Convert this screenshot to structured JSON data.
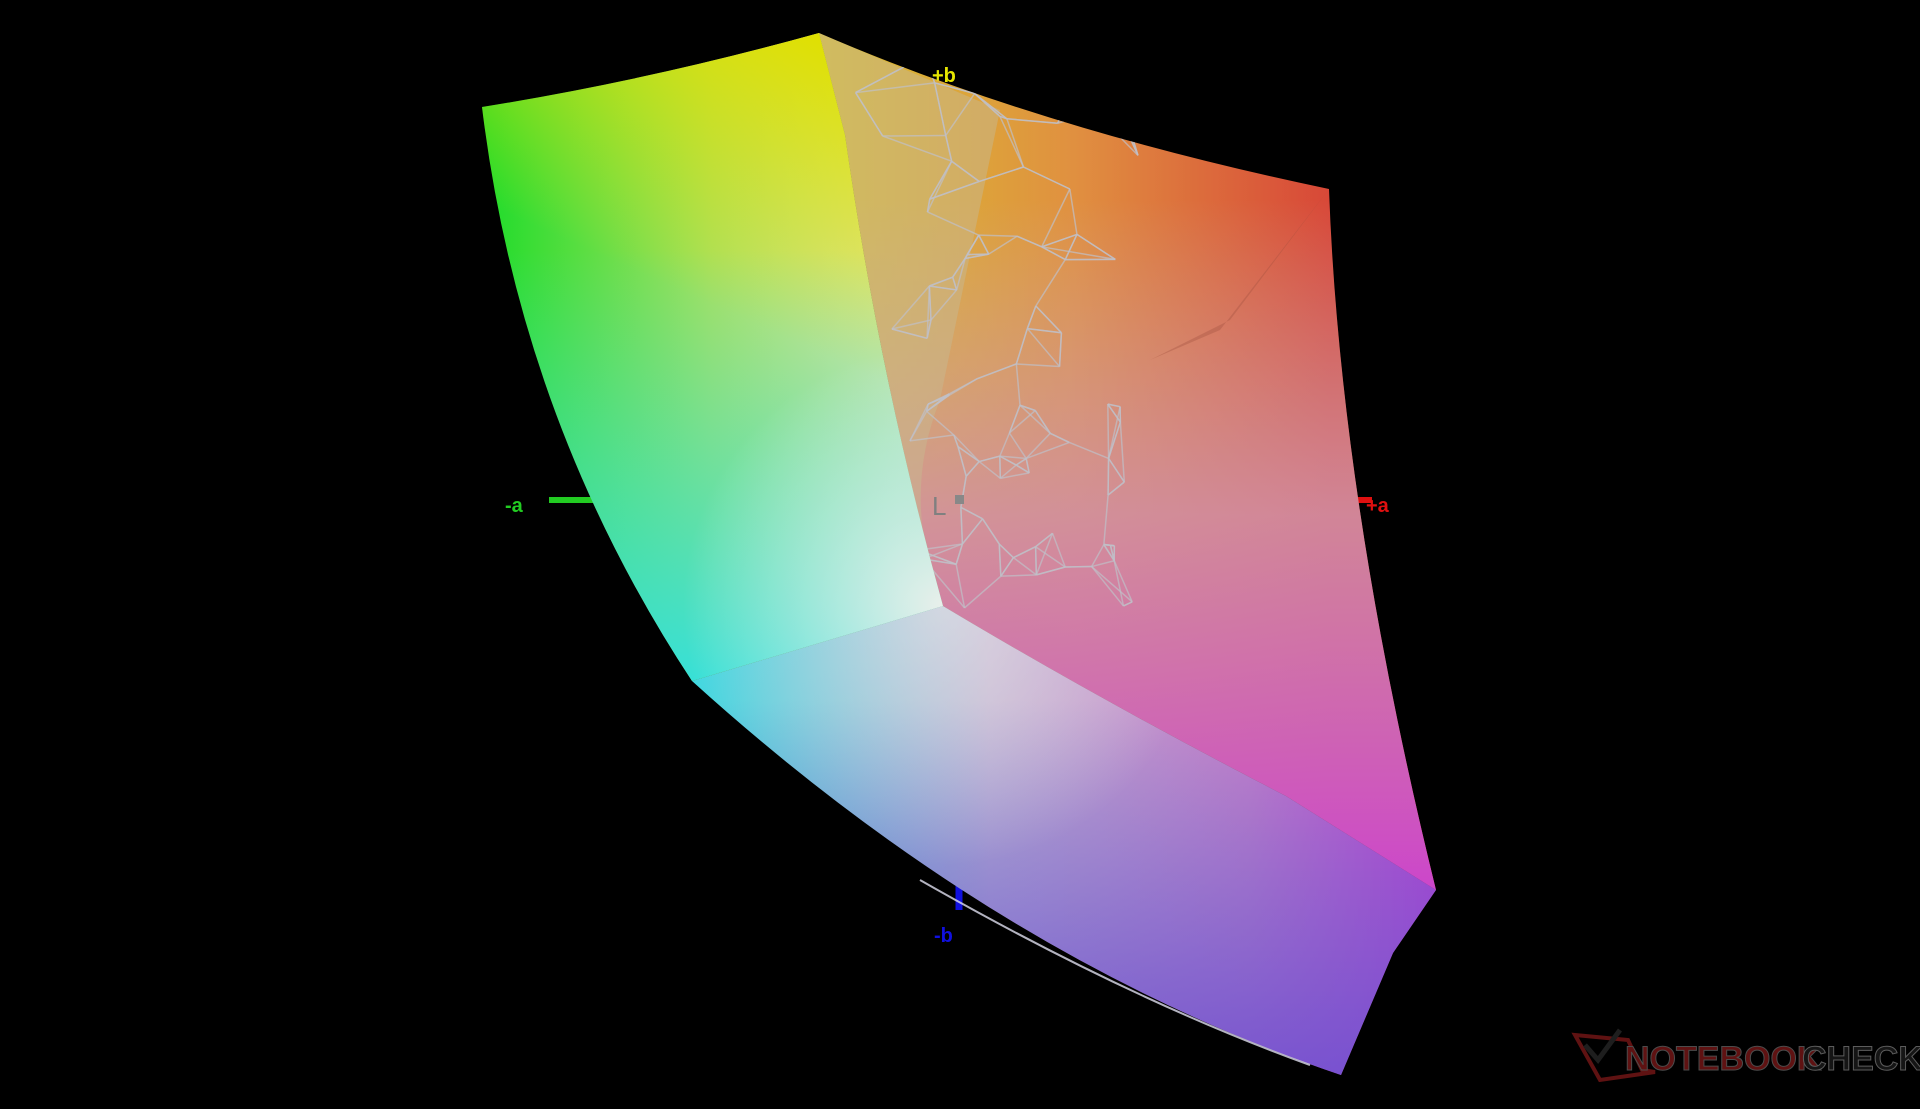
{
  "axes": {
    "plus_b": {
      "label": "+b",
      "color": "#e6e600"
    },
    "minus_a": {
      "label": "-a",
      "color": "#22cc22"
    },
    "plus_a": {
      "label": "+a",
      "color": "#e01010"
    },
    "minus_b": {
      "label": "-b",
      "color": "#1010e0"
    },
    "l": {
      "label": "L",
      "color": "#808080"
    }
  },
  "gamut_colors": {
    "green": "#22dd33",
    "yellow": "#dede10",
    "red": "#d85040",
    "magenta": "#cc44cc",
    "purple": "#8844cc",
    "cyan": "#30e0e0",
    "white": "#e8e8e0"
  },
  "watermark": {
    "text_bold": "NOTEBOOK",
    "text_light": "CHECK",
    "bold_color": "#6a1414",
    "light_color": "#2a2a2a"
  }
}
